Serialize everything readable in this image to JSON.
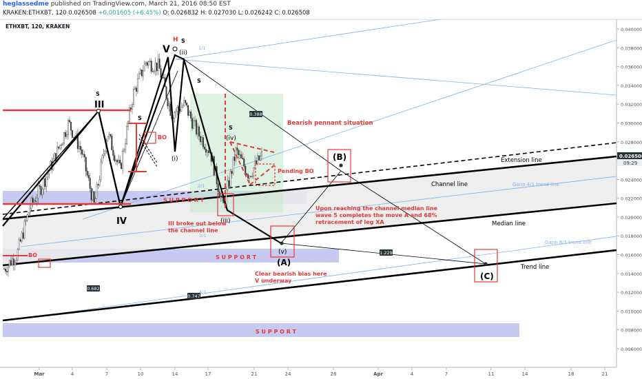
{
  "header": {
    "author": "heglassedme",
    "published_text": "published on TradingView.com, March 21, 2016 08:50 EST",
    "symbol_line": "KRAKEN:ETHXBT, 120",
    "last": "0.026508",
    "change": "+0.001605 (+6.45%)",
    "o_label": "O:",
    "o": "0.026832",
    "h_label": "H:",
    "h": "0.027030",
    "l_label": "L:",
    "l": "0.026242",
    "c_label": "C:",
    "c": "0.026508"
  },
  "chart_data": {
    "type": "candlestick",
    "title": "ETHXBT, 120, KRAKEN",
    "ylim": [
      0.005,
      0.041
    ],
    "y_ticks": [
      "0.040000",
      "0.038000",
      "0.036000",
      "0.034000",
      "0.032000",
      "0.030000",
      "0.028000",
      "0.026000",
      "0.024000",
      "0.022000",
      "0.020000",
      "0.018000",
      "0.016000",
      "0.014000",
      "0.012000",
      "0.010000",
      "0.008000",
      "0.006000"
    ],
    "x_ticks": [
      "Mar",
      "4",
      "7",
      "10",
      "14",
      "17",
      "21",
      "24",
      "28",
      "Apr",
      "4",
      "7",
      "11",
      "14",
      "18",
      "21"
    ],
    "last_price_label": "0.026508",
    "countdown_label": "09:29",
    "price_path_approx": [
      [
        "Mar 1",
        0.0145
      ],
      [
        "Mar 2",
        0.016
      ],
      [
        "Mar 3",
        0.021
      ],
      [
        "Mar 4",
        0.0235
      ],
      [
        "Mar 5",
        0.0265
      ],
      [
        "Mar 6",
        0.03
      ],
      [
        "Mar 7",
        0.027
      ],
      [
        "Mar 8",
        0.0212
      ],
      [
        "Mar 9",
        0.029
      ],
      [
        "Mar 10",
        0.025
      ],
      [
        "Mar 11",
        0.033
      ],
      [
        "Mar 12",
        0.0365
      ],
      [
        "Mar 13",
        0.036
      ],
      [
        "Mar 14",
        0.031
      ],
      [
        "Mar 15",
        0.032
      ],
      [
        "Mar 16",
        0.029
      ],
      [
        "Mar 17",
        0.027
      ],
      [
        "Mar 18",
        0.021
      ],
      [
        "Mar 19",
        0.027
      ],
      [
        "Mar 20",
        0.0245
      ],
      [
        "Mar 21",
        0.0265
      ]
    ],
    "wave_labels": {
      "III": "III",
      "IV": "IV",
      "V": "V",
      "i": "(i)",
      "ii": "(ii)",
      "iii": "(iii)",
      "iv": "(iv)",
      "v": "(v)",
      "A": "(A)",
      "B": "(B)",
      "C": "(C)",
      "H": "H",
      "s_marks": [
        "S",
        "S",
        "S",
        "S",
        "S"
      ]
    },
    "zone_labels": {
      "support_upper": "S U P P O R T",
      "support_mid": "S U P P O R T",
      "support_low": "S U P P O R T"
    },
    "line_labels": {
      "extension": "Extension line",
      "channel": "Channel line",
      "median": "Median line",
      "trend": "Trend line",
      "gann41": "Gann 4/1 trend line",
      "gann81": "Gann 8/1 trend line",
      "fan11": "1/1",
      "fan21": "2/1",
      "fan31": "3/1",
      "fan41b": "4/1"
    },
    "ratio_labels": {
      "r388": "0.388",
      "r1229": "1.229",
      "r682": "0.682",
      "r747": "0.747"
    },
    "annotations": {
      "bearish_pennant": "Bearish pennant situation",
      "pending_bo": "Pending BO",
      "bo_left": "BO",
      "bo_mid": "BO",
      "channel_median_1": "Upon reaching the channel median line",
      "channel_median_2": "wave 5 completes the move A and 68%",
      "channel_median_3": "retracement of leg XA",
      "iii_broke_1": "III broke out below",
      "iii_broke_2": "the channel line",
      "bias_1": "Clear bearish bias here",
      "bias_2": "V underway"
    },
    "colors": {
      "annotation_red": "#e53935",
      "support_fill": "#c7c9f0",
      "channel_fill": "#ebebeb",
      "pennant_fill": "#c8ead0",
      "fan_blue": "#7fb0e8",
      "price_label_bg": "#263238"
    }
  }
}
